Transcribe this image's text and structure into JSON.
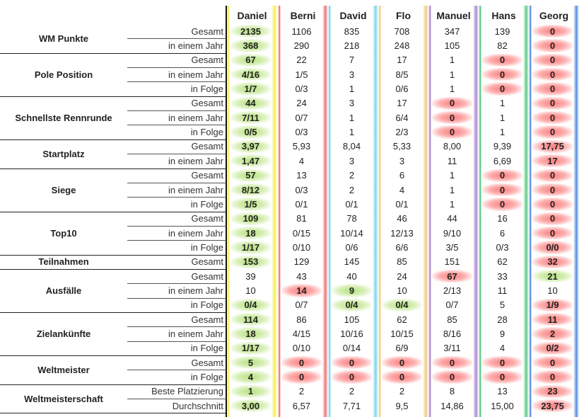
{
  "players": [
    {
      "name": "Daniel",
      "color": "#f4ea3a"
    },
    {
      "name": "Berni",
      "color": "#f25a5a"
    },
    {
      "name": "David",
      "color": "#5ad0f0"
    },
    {
      "name": "Flo",
      "color": "#f0c060"
    },
    {
      "name": "Manuel",
      "color": "#a070c8"
    },
    {
      "name": "Hans",
      "color": "#40c070"
    },
    {
      "name": "Georg",
      "color": "#3a7ad8"
    }
  ],
  "groups": [
    {
      "title": "WM Punkte",
      "rows": [
        {
          "label": "Gesamt",
          "values": [
            "2135",
            "1106",
            "835",
            "708",
            "347",
            "139",
            "0"
          ],
          "marks": [
            "g",
            "",
            "",
            "",
            "",
            "",
            "b"
          ]
        },
        {
          "label": "in einem Jahr",
          "values": [
            "368",
            "290",
            "218",
            "248",
            "105",
            "82",
            "0"
          ],
          "marks": [
            "g",
            "",
            "",
            "",
            "",
            "",
            "b"
          ]
        }
      ]
    },
    {
      "title": "Pole Position",
      "rows": [
        {
          "label": "Gesamt",
          "values": [
            "67",
            "22",
            "7",
            "17",
            "1",
            "0",
            "0"
          ],
          "marks": [
            "g",
            "",
            "",
            "",
            "",
            "b",
            "b"
          ]
        },
        {
          "label": "in einem Jahr",
          "values": [
            "4/16",
            "1/5",
            "3",
            "8/5",
            "1",
            "0",
            "0"
          ],
          "marks": [
            "g",
            "",
            "",
            "",
            "",
            "b",
            "b"
          ]
        },
        {
          "label": "in Folge",
          "values": [
            "1/7",
            "0/3",
            "1",
            "0/6",
            "1",
            "0",
            "0"
          ],
          "marks": [
            "g",
            "",
            "",
            "",
            "",
            "b",
            "b"
          ]
        }
      ]
    },
    {
      "title": "Schnellste Rennrunde",
      "rows": [
        {
          "label": "Gesamt",
          "values": [
            "44",
            "24",
            "3",
            "17",
            "0",
            "1",
            "0"
          ],
          "marks": [
            "g",
            "",
            "",
            "",
            "b",
            "",
            "b"
          ]
        },
        {
          "label": "in einem Jahr",
          "values": [
            "7/11",
            "0/7",
            "1",
            "6/4",
            "0",
            "1",
            "0"
          ],
          "marks": [
            "g",
            "",
            "",
            "",
            "b",
            "",
            "b"
          ]
        },
        {
          "label": "in Folge",
          "values": [
            "0/5",
            "0/3",
            "1",
            "2/3",
            "0",
            "1",
            "0"
          ],
          "marks": [
            "g",
            "",
            "",
            "",
            "b",
            "",
            "b"
          ]
        }
      ]
    },
    {
      "title": "Startplatz",
      "rows": [
        {
          "label": "Gesamt",
          "values": [
            "3,97",
            "5,93",
            "8,04",
            "5,33",
            "8,00",
            "9,39",
            "17,75"
          ],
          "marks": [
            "g",
            "",
            "",
            "",
            "",
            "",
            "b"
          ]
        },
        {
          "label": "in einem Jahr",
          "values": [
            "1,47",
            "4",
            "3",
            "3",
            "11",
            "6,69",
            "17"
          ],
          "marks": [
            "g",
            "",
            "",
            "",
            "",
            "",
            "b"
          ]
        }
      ]
    },
    {
      "title": "Siege",
      "rows": [
        {
          "label": "Gesamt",
          "values": [
            "57",
            "13",
            "2",
            "6",
            "1",
            "0",
            "0"
          ],
          "marks": [
            "g",
            "",
            "",
            "",
            "",
            "b",
            "b"
          ]
        },
        {
          "label": "in einem Jahr",
          "values": [
            "8/12",
            "0/3",
            "2",
            "4",
            "1",
            "0",
            "0"
          ],
          "marks": [
            "g",
            "",
            "",
            "",
            "",
            "b",
            "b"
          ]
        },
        {
          "label": "in Folge",
          "values": [
            "1/5",
            "0/1",
            "0/1",
            "0/1",
            "1",
            "0",
            "0"
          ],
          "marks": [
            "g",
            "",
            "",
            "",
            "",
            "b",
            "b"
          ]
        }
      ]
    },
    {
      "title": "Top10",
      "rows": [
        {
          "label": "Gesamt",
          "values": [
            "109",
            "81",
            "78",
            "46",
            "44",
            "16",
            "0"
          ],
          "marks": [
            "g",
            "",
            "",
            "",
            "",
            "",
            "b"
          ]
        },
        {
          "label": "in einem Jahr",
          "values": [
            "18",
            "0/15",
            "10/14",
            "12/13",
            "9/10",
            "6",
            "0"
          ],
          "marks": [
            "g",
            "",
            "",
            "",
            "",
            "",
            "b"
          ]
        },
        {
          "label": "in Folge",
          "values": [
            "1/17",
            "0/10",
            "0/6",
            "6/6",
            "3/5",
            "0/3",
            "0/0"
          ],
          "marks": [
            "g",
            "",
            "",
            "",
            "",
            "",
            "b"
          ]
        }
      ]
    },
    {
      "title": "Teilnahmen",
      "rows": [
        {
          "label": "Gesamt",
          "values": [
            "153",
            "129",
            "145",
            "85",
            "151",
            "62",
            "32"
          ],
          "marks": [
            "g",
            "",
            "",
            "",
            "",
            "",
            "b"
          ]
        }
      ]
    },
    {
      "title": "Ausfälle",
      "rows": [
        {
          "label": "Gesamt",
          "values": [
            "39",
            "43",
            "40",
            "24",
            "67",
            "33",
            "21"
          ],
          "marks": [
            "",
            "",
            "",
            "",
            "b",
            "",
            "g"
          ]
        },
        {
          "label": "in einem Jahr",
          "values": [
            "10",
            "14",
            "9",
            "10",
            "2/13",
            "11",
            "10"
          ],
          "marks": [
            "",
            "b",
            "g",
            "",
            "",
            "",
            ""
          ]
        },
        {
          "label": "in Folge",
          "values": [
            "0/4",
            "0/7",
            "0/4",
            "0/4",
            "0/7",
            "5",
            "1/9"
          ],
          "marks": [
            "g",
            "",
            "g",
            "g",
            "",
            "",
            "b"
          ]
        }
      ]
    },
    {
      "title": "Zielankünfte",
      "rows": [
        {
          "label": "Gesamt",
          "values": [
            "114",
            "86",
            "105",
            "62",
            "85",
            "28",
            "11"
          ],
          "marks": [
            "g",
            "",
            "",
            "",
            "",
            "",
            "b"
          ]
        },
        {
          "label": "in einem Jahr",
          "values": [
            "18",
            "4/15",
            "10/16",
            "10/15",
            "8/16",
            "9",
            "2"
          ],
          "marks": [
            "g",
            "",
            "",
            "",
            "",
            "",
            "b"
          ]
        },
        {
          "label": "in Folge",
          "values": [
            "1/17",
            "0/10",
            "0/14",
            "6/9",
            "3/11",
            "4",
            "0/2"
          ],
          "marks": [
            "g",
            "",
            "",
            "",
            "",
            "",
            "b"
          ]
        }
      ]
    },
    {
      "title": "Weltmeister",
      "rows": [
        {
          "label": "Gesamt",
          "values": [
            "5",
            "0",
            "0",
            "0",
            "0",
            "0",
            "0"
          ],
          "marks": [
            "g",
            "b",
            "b",
            "b",
            "b",
            "b",
            "b"
          ]
        },
        {
          "label": "in Folge",
          "values": [
            "4",
            "0",
            "0",
            "0",
            "0",
            "0",
            "0"
          ],
          "marks": [
            "g",
            "b",
            "b",
            "b",
            "b",
            "b",
            "b"
          ]
        }
      ]
    },
    {
      "title": "Weltmeisterschaft",
      "rows": [
        {
          "label": "Beste Platzierung",
          "values": [
            "1",
            "2",
            "2",
            "2",
            "8",
            "13",
            "23"
          ],
          "marks": [
            "g",
            "",
            "",
            "",
            "",
            "",
            "b"
          ]
        },
        {
          "label": "Durchschnitt",
          "values": [
            "3,00",
            "6,57",
            "7,71",
            "9,5",
            "14,86",
            "15,00",
            "23,75"
          ],
          "marks": [
            "g",
            "",
            "",
            "",
            "",
            "",
            "b"
          ]
        }
      ]
    }
  ]
}
